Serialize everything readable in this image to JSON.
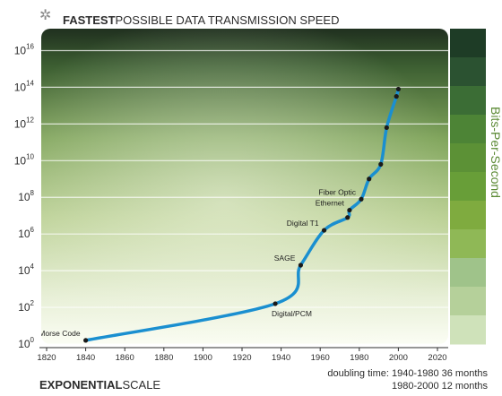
{
  "header": {
    "sparkle_icon": "sparkle-icon",
    "title_bold": "FASTEST",
    "title_rest": "POSSIBLE DATA TRANSMISSION SPEED"
  },
  "footer": {
    "scale_bold": "EXPONENTIAL",
    "scale_rest": "SCALE",
    "doubling_line1": "doubling time: 1940-1980 36 months",
    "doubling_line2": "1980-2000 12 months"
  },
  "colors": {
    "curve": "#1a8fd0",
    "point": "#1a1a1a",
    "frame": "#2c2c2c",
    "legend_swatches": [
      "#1e3c26",
      "#2b5231",
      "#3b6d35",
      "#4d8436",
      "#5c9136",
      "#689e38",
      "#7fab3f",
      "#8fb856",
      "#9fc38a",
      "#b5d09a",
      "#cfe2ba"
    ]
  },
  "chart_data": {
    "type": "line",
    "title": "FASTEST POSSIBLE DATA TRANSMISSION SPEED",
    "ylabel": "Bits-Per-Second",
    "xlabel": "",
    "x_scale": "linear",
    "y_scale": "log",
    "xlim": [
      1820,
      2020
    ],
    "ylim": [
      0,
      17
    ],
    "x_ticks": [
      1820,
      1840,
      1860,
      1880,
      1900,
      1920,
      1940,
      1960,
      1980,
      2000,
      2020
    ],
    "x_tick_labels": [
      "1820",
      "1840",
      "1860",
      "1880",
      "1900",
      "1920",
      "1940",
      "1960",
      "1980",
      "2000",
      "2020"
    ],
    "y_ticks": [
      0,
      2,
      4,
      6,
      8,
      10,
      12,
      14,
      16
    ],
    "y_tick_base": "10",
    "y_tick_exponents": [
      "0",
      "2",
      "4",
      "6",
      "8",
      "10",
      "12",
      "14",
      "16"
    ],
    "grid": true,
    "legend": "right",
    "series": [
      {
        "points": [
          {
            "x": 1840,
            "y": 0.2,
            "label": "Morse Code"
          },
          {
            "x": 1937,
            "y": 2.2,
            "label": "Digital/PCM"
          },
          {
            "x": 1950,
            "y": 4.3,
            "label": "SAGE"
          },
          {
            "x": 1962,
            "y": 6.2,
            "label": "Digital T1"
          },
          {
            "x": 1974,
            "y": 6.9,
            "label": ""
          },
          {
            "x": 1975,
            "y": 7.3,
            "label": "Ethernet"
          },
          {
            "x": 1981,
            "y": 7.9,
            "label": "Fiber Optic"
          },
          {
            "x": 1985,
            "y": 9.0,
            "label": ""
          },
          {
            "x": 1991,
            "y": 9.8,
            "label": ""
          },
          {
            "x": 1994,
            "y": 11.8,
            "label": ""
          },
          {
            "x": 1999,
            "y": 13.5,
            "label": ""
          },
          {
            "x": 2000,
            "y": 13.9,
            "label": ""
          }
        ]
      }
    ]
  }
}
